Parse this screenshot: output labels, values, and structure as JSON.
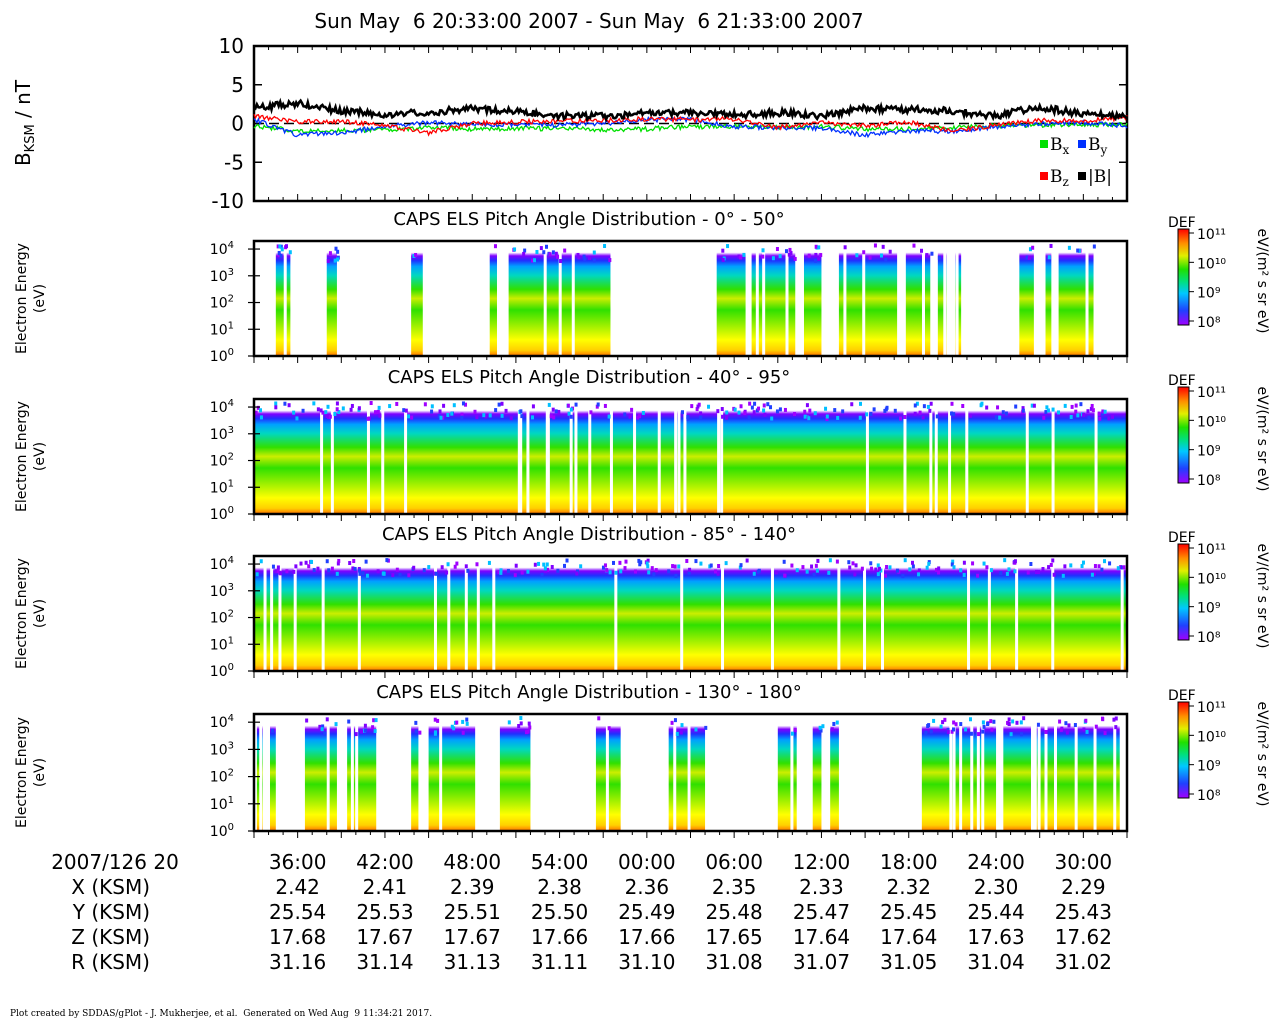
{
  "header": {
    "title": "Sun May  6 20:33:00 2007 - Sun May  6 21:33:00 2007"
  },
  "footer": {
    "text": "Plot created by SDDAS/gPlot - J. Mukherjee, et al.  Generated on Wed Aug  9 11:34:21 2017."
  },
  "colorbar": {
    "label": "DEF",
    "units": "eV/(m² s sr eV)",
    "ticks": [
      "10¹¹",
      "10¹⁰",
      "10⁹",
      "10⁸"
    ]
  },
  "chart_data": [
    {
      "type": "line",
      "ylabel_main": "B",
      "ylabel_sub": "KSM",
      "ylabel_units": " / nT",
      "ylim": [
        -10,
        10
      ],
      "yticks": [
        10,
        5,
        0,
        -5,
        -10
      ],
      "xlim_min": [
        0,
        60
      ],
      "legend": [
        "B",
        "B",
        "B",
        "|B|"
      ],
      "legend_subs": [
        "x",
        "y",
        "z",
        ""
      ],
      "series": [
        {
          "name": "Bx",
          "color": "#00e000",
          "x": [
            0,
            3,
            6,
            9,
            12,
            15,
            18,
            21,
            24,
            27,
            30,
            33,
            36,
            39,
            42,
            45,
            48,
            51,
            54,
            57,
            60
          ],
          "y": [
            -0.3,
            -1.0,
            -0.9,
            -0.8,
            -0.5,
            -0.7,
            -0.7,
            -0.6,
            -0.8,
            -0.7,
            -0.4,
            -0.4,
            -0.5,
            -0.4,
            -0.7,
            -0.7,
            -0.5,
            -0.3,
            -0.2,
            -0.1,
            -0.2
          ]
        },
        {
          "name": "By",
          "color": "#0030ff",
          "x": [
            0,
            3,
            6,
            9,
            12,
            15,
            18,
            21,
            24,
            27,
            30,
            33,
            36,
            39,
            42,
            45,
            48,
            51,
            54,
            57,
            60
          ],
          "y": [
            0.5,
            -1.5,
            -1.2,
            -0.4,
            0.1,
            -0.1,
            -0.1,
            -0.2,
            0.0,
            0.5,
            0.5,
            -0.4,
            -0.5,
            -0.6,
            -1.5,
            -1.0,
            -1.0,
            -0.4,
            0.0,
            0.1,
            -0.3
          ]
        },
        {
          "name": "Bz",
          "color": "#ff0000",
          "x": [
            0,
            3,
            6,
            9,
            12,
            15,
            18,
            21,
            24,
            27,
            30,
            33,
            36,
            39,
            42,
            45,
            48,
            51,
            54,
            57,
            60
          ],
          "y": [
            1.0,
            0.2,
            0.3,
            -0.3,
            -1.2,
            0.0,
            0.2,
            0.3,
            0.4,
            0.6,
            0.5,
            0.6,
            -0.5,
            0.1,
            -0.3,
            0.2,
            -1.0,
            -0.2,
            0.4,
            0.3,
            0.8
          ]
        },
        {
          "name": "|B|",
          "color": "#000000",
          "x": [
            0,
            3,
            6,
            9,
            12,
            15,
            18,
            21,
            24,
            27,
            30,
            33,
            36,
            39,
            42,
            45,
            48,
            51,
            54,
            57,
            60
          ],
          "y": [
            2.0,
            2.6,
            1.6,
            1.2,
            1.4,
            2.0,
            1.5,
            1.0,
            0.9,
            1.3,
            1.4,
            1.1,
            1.4,
            1.0,
            2.0,
            1.8,
            1.6,
            1.0,
            2.1,
            1.2,
            1.0
          ]
        }
      ]
    },
    {
      "type": "heatmap",
      "title": "CAPS ELS Pitch Angle Distribution - 0° - 50°",
      "ylabel": [
        "Electron Energy",
        "(eV)"
      ],
      "yscale": "log",
      "ylim": [
        1,
        20000
      ],
      "coverage_minutes": [
        [
          1.5,
          2.5
        ],
        [
          5.0,
          5.7
        ],
        [
          10.8,
          11.6
        ],
        [
          16.2,
          16.7
        ],
        [
          17.5,
          24.5
        ],
        [
          31.8,
          33.8
        ],
        [
          34.2,
          37.2
        ],
        [
          37.8,
          39.0
        ],
        [
          40.2,
          44.2
        ],
        [
          44.8,
          46.6
        ],
        [
          47.0,
          47.6
        ],
        [
          48.2,
          48.6
        ],
        [
          52.6,
          53.6
        ],
        [
          54.4,
          54.8
        ],
        [
          55.3,
          57.7
        ]
      ]
    },
    {
      "type": "heatmap",
      "title": "CAPS ELS Pitch Angle Distribution - 40° - 95°",
      "ylabel": [
        "Electron Energy",
        "(eV)"
      ],
      "yscale": "log",
      "ylim": [
        1,
        20000
      ],
      "coverage_minutes": [
        [
          0,
          60
        ]
      ]
    },
    {
      "type": "heatmap",
      "title": "CAPS ELS Pitch Angle Distribution - 85° - 140°",
      "ylabel": [
        "Electron Energy",
        "(eV)"
      ],
      "yscale": "log",
      "ylim": [
        1,
        20000
      ],
      "coverage_minutes": [
        [
          0,
          60
        ]
      ]
    },
    {
      "type": "heatmap",
      "title": "CAPS ELS Pitch Angle Distribution - 130° - 180°",
      "ylabel": [
        "Electron Energy",
        "(eV)"
      ],
      "yscale": "log",
      "ylim": [
        1,
        20000
      ],
      "coverage_minutes": [
        [
          0.2,
          0.6
        ],
        [
          1.1,
          1.5
        ],
        [
          3.5,
          5.0
        ],
        [
          5.2,
          5.7
        ],
        [
          6.4,
          8.4
        ],
        [
          10.8,
          11.3
        ],
        [
          12.0,
          15.2
        ],
        [
          16.9,
          19.0
        ],
        [
          23.5,
          25.2
        ],
        [
          28.5,
          29.8
        ],
        [
          30.0,
          31.0
        ],
        [
          36.0,
          37.3
        ],
        [
          38.4,
          39.0
        ],
        [
          39.6,
          40.2
        ],
        [
          45.9,
          51.0
        ],
        [
          51.5,
          53.4
        ],
        [
          53.8,
          59.5
        ]
      ]
    }
  ],
  "energy_ticks": [
    {
      "base": "10",
      "exp": "4"
    },
    {
      "base": "10",
      "exp": "3"
    },
    {
      "base": "10",
      "exp": "2"
    },
    {
      "base": "10",
      "exp": "1"
    },
    {
      "base": "10",
      "exp": "0"
    }
  ],
  "time_axis": {
    "date_label": "2007/126 20",
    "ticks": [
      "36:00",
      "42:00",
      "48:00",
      "54:00",
      "00:00",
      "06:00",
      "12:00",
      "18:00",
      "24:00",
      "30:00"
    ],
    "tick_minutes": [
      3,
      9,
      15,
      21,
      27,
      33,
      39,
      45,
      51,
      57
    ]
  },
  "ephemeris": [
    {
      "label": "X (KSM)",
      "values": [
        "2.42",
        "2.41",
        "2.39",
        "2.38",
        "2.36",
        "2.35",
        "2.33",
        "2.32",
        "2.30",
        "2.29"
      ]
    },
    {
      "label": "Y (KSM)",
      "values": [
        "25.54",
        "25.53",
        "25.51",
        "25.50",
        "25.49",
        "25.48",
        "25.47",
        "25.45",
        "25.44",
        "25.43"
      ]
    },
    {
      "label": "Z (KSM)",
      "values": [
        "17.68",
        "17.67",
        "17.67",
        "17.66",
        "17.66",
        "17.65",
        "17.64",
        "17.64",
        "17.63",
        "17.62"
      ]
    },
    {
      "label": "R (KSM)",
      "values": [
        "31.16",
        "31.14",
        "31.13",
        "31.11",
        "31.10",
        "31.08",
        "31.07",
        "31.05",
        "31.04",
        "31.02"
      ]
    }
  ]
}
